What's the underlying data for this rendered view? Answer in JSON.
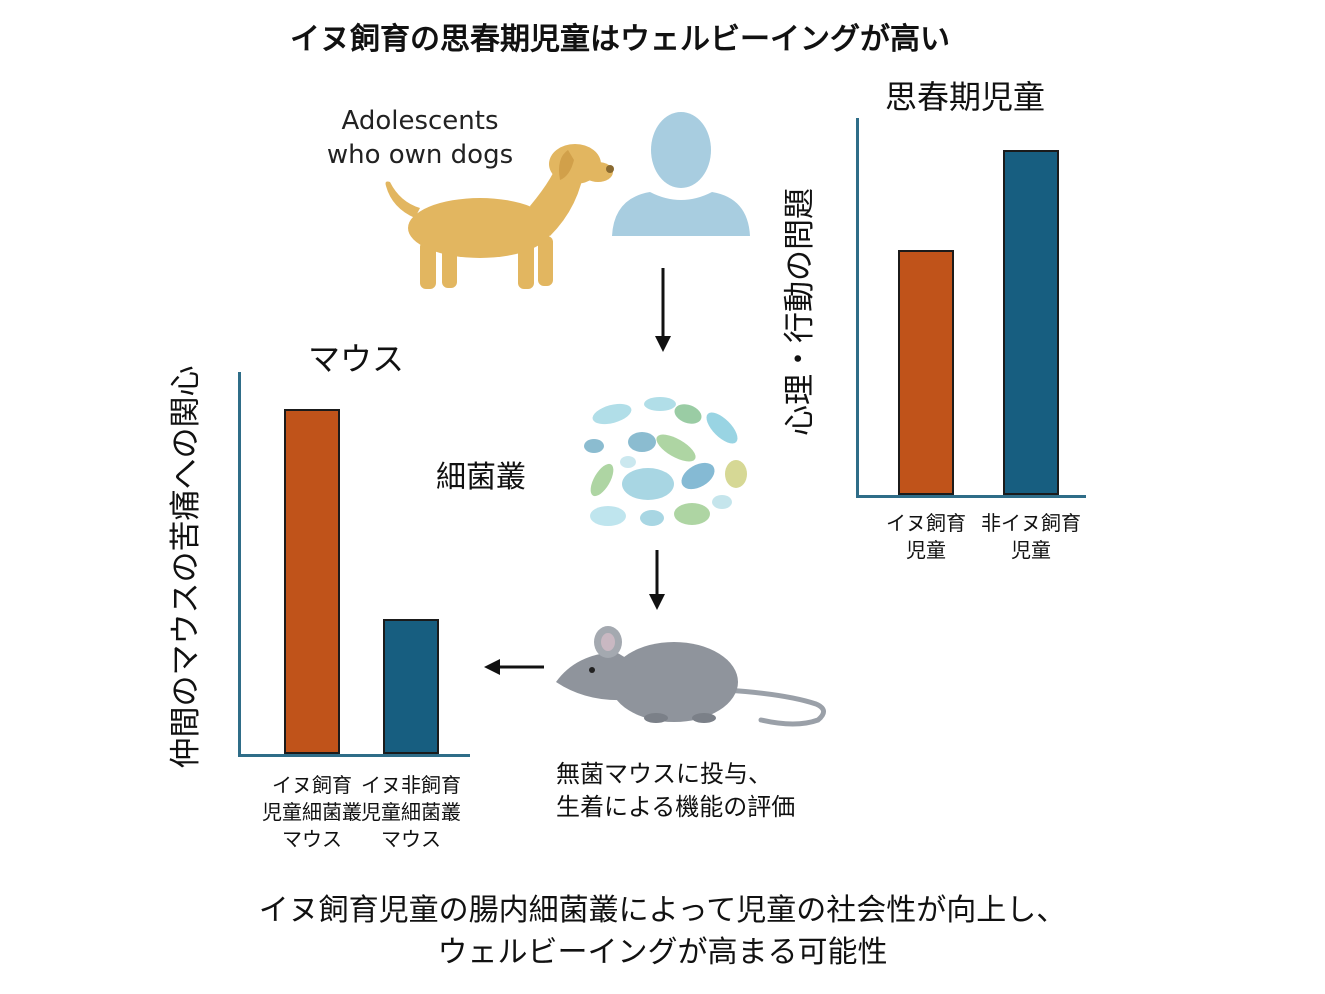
{
  "title": "イヌ飼育の思春期児童はウェルビーイングが高い",
  "illustration": {
    "adolescents_label": "Adolescents\nwho own dogs",
    "dog_icon": "dog-icon",
    "person_icon": "person-icon",
    "microbiome_label": "細菌叢",
    "microbiome_icon": "bacteria-cluster-icon",
    "mouse_icon": "mouse-icon",
    "mouse_caption": "無菌マウスに投与、\n生着による機能の評価"
  },
  "colors": {
    "dog_owner": "#c0531a",
    "non_owner": "#175e80",
    "axis": "#2f6d88",
    "dog": "#e2b660",
    "person": "#a8cde0",
    "mouse": "#8f949c"
  },
  "chart_data": [
    {
      "type": "bar",
      "title": "思春期児童",
      "ylabel": "心理・行動の問題",
      "xlabel": "",
      "categories": [
        "イヌ飼育\n児童",
        "非イヌ飼育\n児童"
      ],
      "values": [
        71,
        100
      ],
      "ylim": [
        0,
        100
      ],
      "grid": false
    },
    {
      "type": "bar",
      "title": "マウス",
      "ylabel": "仲間のマウスの苦痛への関心",
      "xlabel": "",
      "categories": [
        "イヌ飼育\n児童細菌叢\nマウス",
        "イヌ非飼育\n児童細菌叢\nマウス"
      ],
      "values": [
        100,
        39
      ],
      "ylim": [
        0,
        100
      ],
      "grid": false
    }
  ],
  "conclusion": "イヌ飼育児童の腸内細菌叢によって児童の社会性が向上し、\nウェルビーイングが高まる可能性"
}
